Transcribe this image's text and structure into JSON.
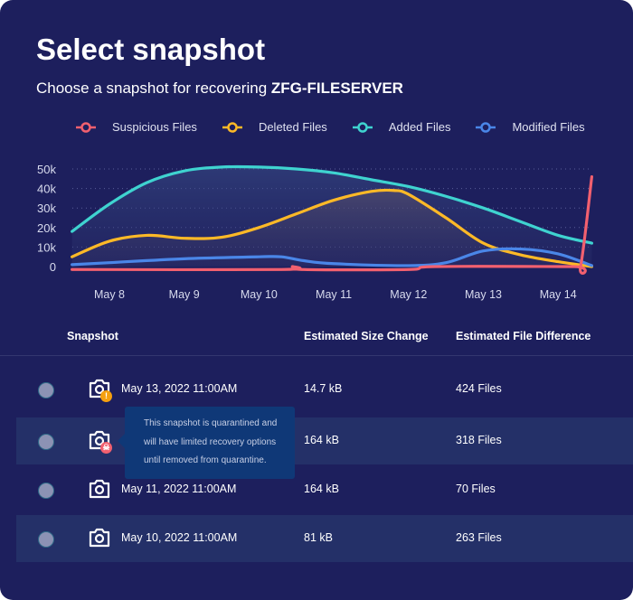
{
  "title": "Select snapshot",
  "subtitle_prefix": "Choose a snapshot for recovering ",
  "subtitle_target": "ZFG-FILESERVER",
  "colors": {
    "background": "#1d1f5d",
    "suspicious": "#f2606f",
    "deleted": "#fdb927",
    "added": "#3fd3d0",
    "modified": "#4a86e8"
  },
  "chart_data": {
    "type": "area",
    "legend_position": "top",
    "grid": true,
    "ylim": [
      0,
      50000
    ],
    "yticks": [
      "0",
      "10k",
      "20k",
      "30k",
      "40k",
      "50k"
    ],
    "ytick_values": [
      0,
      10000,
      20000,
      30000,
      40000,
      50000
    ],
    "xticks": [
      "May 8",
      "May 9",
      "May 10",
      "May 11",
      "May 12",
      "May 13",
      "May 14"
    ],
    "xtick_days": [
      8,
      9,
      10,
      11,
      12,
      13,
      14
    ],
    "series": [
      {
        "name": "Added Files",
        "color": "#3fd3d0",
        "points": [
          [
            7.5,
            18000
          ],
          [
            8,
            32000
          ],
          [
            8.5,
            43000
          ],
          [
            9,
            49000
          ],
          [
            9.5,
            51000
          ],
          [
            10,
            51000
          ],
          [
            10.5,
            50000
          ],
          [
            11,
            48000
          ],
          [
            11.5,
            44500
          ],
          [
            12,
            41000
          ],
          [
            12.5,
            36000
          ],
          [
            13,
            30000
          ],
          [
            13.5,
            23000
          ],
          [
            14,
            16000
          ],
          [
            14.45,
            12000
          ]
        ]
      },
      {
        "name": "Deleted Files",
        "color": "#fdb927",
        "points": [
          [
            7.5,
            5000
          ],
          [
            8,
            13000
          ],
          [
            8.5,
            16000
          ],
          [
            9,
            14500
          ],
          [
            9.5,
            15000
          ],
          [
            10,
            20000
          ],
          [
            10.5,
            27000
          ],
          [
            11,
            34000
          ],
          [
            11.5,
            38500
          ],
          [
            11.8,
            39000
          ],
          [
            12,
            37000
          ],
          [
            12.5,
            25000
          ],
          [
            13,
            12000
          ],
          [
            13.5,
            6000
          ],
          [
            14,
            2500
          ],
          [
            14.45,
            0
          ]
        ]
      },
      {
        "name": "Modified Files",
        "color": "#4a86e8",
        "points": [
          [
            7.5,
            1000
          ],
          [
            8,
            2000
          ],
          [
            9,
            4000
          ],
          [
            10,
            5000
          ],
          [
            10.3,
            5000
          ],
          [
            10.6,
            3000
          ],
          [
            11,
            1500
          ],
          [
            12,
            500
          ],
          [
            12.5,
            2000
          ],
          [
            13,
            8000
          ],
          [
            13.5,
            9000
          ],
          [
            14,
            6500
          ],
          [
            14.45,
            500
          ]
        ]
      },
      {
        "name": "Suspicious Files",
        "color": "#f2606f",
        "points": [
          [
            7.5,
            -1500
          ],
          [
            10.3,
            -1500
          ],
          [
            10.45,
            0
          ],
          [
            10.6,
            -1500
          ],
          [
            12,
            -1500
          ],
          [
            12.35,
            0
          ],
          [
            14.2,
            0
          ],
          [
            14.3,
            0
          ],
          [
            14.45,
            46000
          ]
        ]
      }
    ]
  },
  "legend": [
    "Suspicious Files",
    "Deleted Files",
    "Added Files",
    "Modified Files"
  ],
  "table": {
    "headers": [
      "Snapshot",
      "Estimated Size Change",
      "Estimated File Difference"
    ],
    "rows": [
      {
        "date": "May 13, 2022 11:00AM",
        "size": "14.7 kB",
        "files": "424 Files",
        "badge": "!",
        "badge_type": "warning"
      },
      {
        "date": "",
        "size": "164 kB",
        "files": "318 Files",
        "badge": "☠",
        "badge_type": "quarantined"
      },
      {
        "date": "May 11, 2022 11:00AM",
        "size": "164 kB",
        "files": "70 Files",
        "badge": "",
        "badge_type": "none"
      },
      {
        "date": "May 10, 2022 11:00AM",
        "size": "81 kB",
        "files": "263 Files",
        "badge": "",
        "badge_type": "none"
      }
    ]
  },
  "tooltip": {
    "lines": [
      "This snapshot is quarantined and",
      "will have limited recovery options",
      "until removed from quarantine."
    ]
  }
}
